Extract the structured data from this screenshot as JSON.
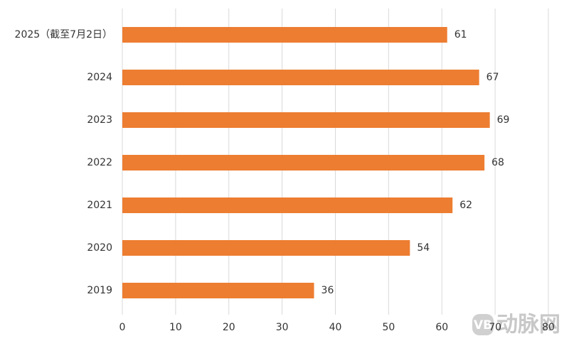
{
  "chart_data": {
    "type": "hbar",
    "categories": [
      "2025（截至7月2日）",
      "2024",
      "2023",
      "2022",
      "2021",
      "2020",
      "2019"
    ],
    "values": [
      61,
      67,
      69,
      68,
      62,
      54,
      36
    ],
    "color": "#ed7d31",
    "xlim": [
      0,
      80
    ],
    "xticks": [
      0,
      10,
      20,
      30,
      40,
      50,
      60,
      70,
      80
    ],
    "grid": true,
    "watermark_logo": "VB",
    "watermark": "动脉网"
  }
}
